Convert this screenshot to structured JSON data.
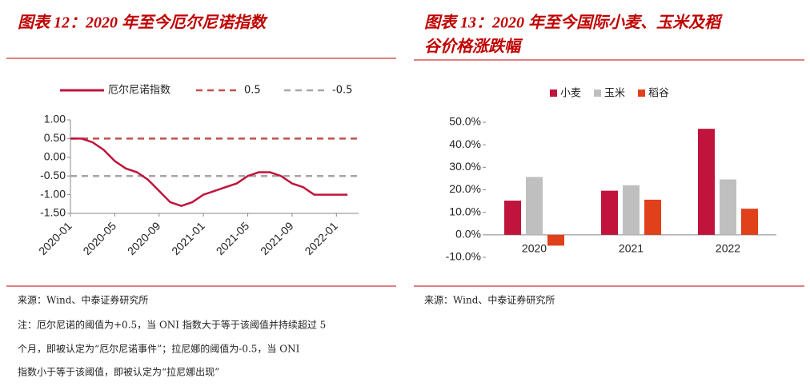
{
  "chart_data": [
    {
      "type": "line",
      "title": "图表 12：2020 年至今厄尔尼诺指数",
      "categories": [
        "2020-01",
        null,
        null,
        null,
        "2020-05",
        null,
        null,
        null,
        "2020-09",
        null,
        null,
        null,
        "2021-01",
        null,
        null,
        null,
        "2021-05",
        null,
        null,
        null,
        "2021-09",
        null,
        null,
        null,
        "2022-01",
        null
      ],
      "series": [
        {
          "name": "厄尔尼诺指数",
          "color": "#c0143c",
          "values": [
            0.5,
            0.5,
            0.4,
            0.2,
            -0.1,
            -0.3,
            -0.4,
            -0.6,
            -0.9,
            -1.2,
            -1.3,
            -1.2,
            -1.0,
            -0.9,
            -0.8,
            -0.7,
            -0.5,
            -0.4,
            -0.4,
            -0.5,
            -0.7,
            -0.8,
            -1.0,
            -1.0,
            -1.0,
            -1.0
          ]
        }
      ],
      "reference_lines": [
        {
          "name": "0.5",
          "value": 0.5,
          "color": "#c0504d"
        },
        {
          "name": "-0.5",
          "value": -0.5,
          "color": "#a6a6a6"
        }
      ],
      "ylim": [
        -1.5,
        1.0
      ],
      "yticks": [
        {
          "value": 1.0,
          "label": "1.00"
        },
        {
          "value": 0.5,
          "label": "0.50"
        },
        {
          "value": 0,
          "label": "0.00"
        },
        {
          "value": -0.5,
          "label": "-0.50"
        },
        {
          "value": -1.0,
          "label": "-1.00"
        },
        {
          "value": -1.5,
          "label": "-1.50"
        }
      ],
      "source": "来源：Wind、中泰证券研究所",
      "note": [
        "注：厄尔尼诺的阈值为+0.5，当 ONI 指数大于等于该阈值并持续超过 5",
        "个月，即被认定为“厄尔尼诺事件”；拉尼娜的阈值为-0.5，当 ONI",
        "指数小于等于该阈值，即被认定为“拉尼娜出现”"
      ]
    },
    {
      "type": "bar",
      "title": [
        "图表 13：2020 年至今国际小麦、玉米及稻",
        "谷价格涨跌幅"
      ],
      "categories": [
        "2020",
        "2021",
        "2022"
      ],
      "series": [
        {
          "name": "小麦",
          "color": "#c0143c",
          "values": [
            15.2,
            19.6,
            47.1
          ]
        },
        {
          "name": "玉米",
          "color": "#bfbfbf",
          "values": [
            25.7,
            22.0,
            24.6
          ]
        },
        {
          "name": "稻谷",
          "color": "#e0401a",
          "values": [
            -4.8,
            15.6,
            11.6
          ]
        }
      ],
      "ylim": [
        -10,
        50
      ],
      "yticks": [
        {
          "value": 50,
          "label": "50.0%"
        },
        {
          "value": 40,
          "label": "40.0%"
        },
        {
          "value": 30,
          "label": "30.0%"
        },
        {
          "value": 20,
          "label": "20.0%"
        },
        {
          "value": 10,
          "label": "10.0%"
        },
        {
          "value": 0,
          "label": "0.0%"
        },
        {
          "value": -10,
          "label": "-10.0%"
        }
      ],
      "source": "来源：Wind、中泰证券研究所"
    }
  ]
}
